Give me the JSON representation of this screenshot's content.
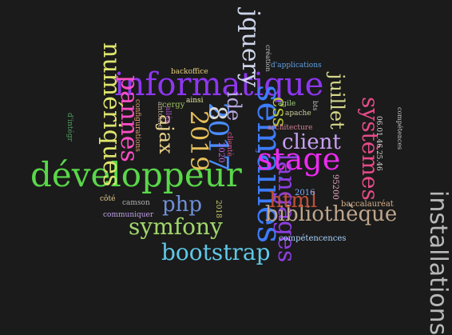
{
  "words": [
    {
      "text": "informatique",
      "color": "#8e37f0"
    },
    {
      "text": "développeur",
      "color": "#5ad74a"
    },
    {
      "text": "semaines",
      "color": "#3d7cff"
    },
    {
      "text": "stage",
      "color": "#ee2af1"
    },
    {
      "text": "installations",
      "color": "#b8b8b8"
    },
    {
      "text": "numériques",
      "color": "#dfe56d"
    },
    {
      "text": "jquery",
      "color": "#cfd6ea"
    },
    {
      "text": "pannes",
      "color": "#ff4fc5"
    },
    {
      "text": "2017",
      "color": "#4a8dff"
    },
    {
      "text": "2019",
      "color": "#e7c05a"
    },
    {
      "text": "8",
      "color": "#d8d8d8"
    },
    {
      "text": "langages",
      "color": "#8e3fe0"
    },
    {
      "text": "bibliothèque",
      "color": "#bfa68c"
    },
    {
      "text": "symfony",
      "color": "#a2d86b"
    },
    {
      "text": "bootstrap",
      "color": "#5fc8e8"
    },
    {
      "text": "php",
      "color": "#6f90d8"
    },
    {
      "text": "html",
      "color": "#c14f38"
    },
    {
      "text": "client",
      "color": "#c9a0f2"
    },
    {
      "text": "systèmes",
      "color": "#e84a8a"
    },
    {
      "text": "ajax",
      "color": "#ead28a"
    },
    {
      "text": "ide",
      "color": "#b9a9e0"
    },
    {
      "text": "css",
      "color": "#b9c83a"
    },
    {
      "text": "juillet",
      "color": "#d6d78a"
    },
    {
      "text": "2016",
      "color": "#7fb0ff"
    },
    {
      "text": "95200",
      "color": "#e2a2c0"
    },
    {
      "text": "baccalauréat",
      "color": "#d9b28a"
    },
    {
      "text": "compétencences",
      "color": "#a8d4ff"
    },
    {
      "text": "communiquer",
      "color": "#c0a0e8"
    },
    {
      "text": "camson",
      "color": "#b0b0b0"
    },
    {
      "text": "côté",
      "color": "#e8d090"
    },
    {
      "text": "2018",
      "color": "#d0d070"
    },
    {
      "text": "clientè",
      "color": "#e25a9a"
    },
    {
      "text": "2020",
      "color": "#c060e0"
    },
    {
      "text": "cergy",
      "color": "#a0c060"
    },
    {
      "text": "antoine",
      "color": "#c0b0a0"
    },
    {
      "text": "configurations",
      "color": "#e0a070"
    },
    {
      "text": "d'intégr",
      "color": "#50a060"
    },
    {
      "text": "allée",
      "color": "#a050c0"
    },
    {
      "text": "ainsi",
      "color": "#e8e8a0"
    },
    {
      "text": "backoffice",
      "color": "#e8d080"
    },
    {
      "text": "apache",
      "color": "#d0d0a0"
    },
    {
      "text": "agile",
      "color": "#a0d080"
    },
    {
      "text": "architecture",
      "color": "#d08090"
    },
    {
      "text": "bts",
      "color": "#c0c0c0"
    },
    {
      "text": "d'applications",
      "color": "#60a0e0"
    },
    {
      "text": "création",
      "color": "#c0c0c0"
    },
    {
      "text": "06.01.46.25.46",
      "color": "#d8d8d8"
    },
    {
      "text": "compétences",
      "color": "#c0c0c0"
    },
    {
      "text": "3",
      "color": "#8080ff"
    }
  ]
}
